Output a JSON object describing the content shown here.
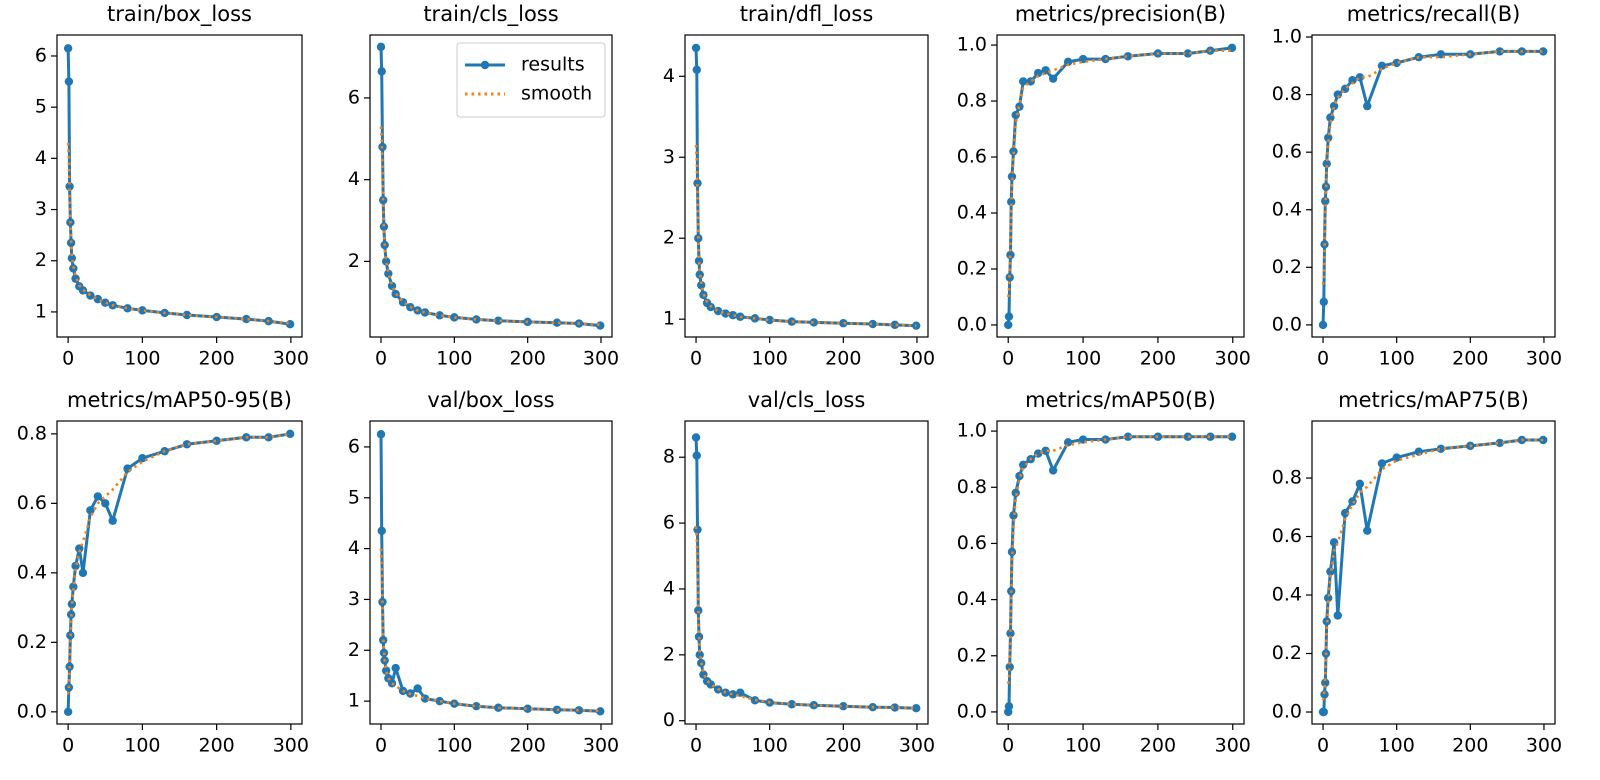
{
  "chart_data": [
    {
      "type": "line",
      "title": "train/box_loss",
      "x": [
        0,
        1,
        2,
        3,
        4,
        5,
        7,
        10,
        15,
        20,
        30,
        40,
        50,
        60,
        80,
        100,
        130,
        160,
        200,
        240,
        270,
        299
      ],
      "series": [
        {
          "color": "#1f77b4",
          "style": "solid",
          "marker": true,
          "values": [
            6.15,
            5.5,
            3.45,
            2.75,
            2.35,
            2.05,
            1.85,
            1.65,
            1.5,
            1.42,
            1.32,
            1.25,
            1.18,
            1.13,
            1.07,
            1.03,
            0.98,
            0.94,
            0.9,
            0.86,
            0.82,
            0.76
          ]
        },
        {
          "color": "#ff7f0e",
          "style": "dotted",
          "marker": false,
          "values": [
            4.3,
            4.0,
            3.3,
            2.8,
            2.4,
            2.1,
            1.9,
            1.7,
            1.52,
            1.43,
            1.33,
            1.25,
            1.18,
            1.13,
            1.07,
            1.03,
            0.98,
            0.94,
            0.9,
            0.86,
            0.82,
            0.78
          ]
        }
      ],
      "xlim": [
        -15,
        315
      ],
      "xticks": [
        0,
        100,
        200,
        300
      ],
      "ylim": [
        0.51,
        6.41
      ],
      "yticks": [
        1,
        2,
        3,
        4,
        5,
        6
      ]
    },
    {
      "type": "line",
      "title": "train/cls_loss",
      "x": [
        0,
        1,
        2,
        3,
        4,
        5,
        7,
        10,
        15,
        20,
        30,
        40,
        50,
        60,
        80,
        100,
        130,
        160,
        200,
        240,
        270,
        299
      ],
      "series": [
        {
          "name": "results",
          "color": "#1f77b4",
          "style": "solid",
          "marker": true,
          "values": [
            7.25,
            6.65,
            4.8,
            3.5,
            2.85,
            2.4,
            2.0,
            1.7,
            1.4,
            1.2,
            1.0,
            0.88,
            0.8,
            0.75,
            0.68,
            0.63,
            0.58,
            0.55,
            0.52,
            0.5,
            0.48,
            0.43
          ]
        },
        {
          "name": "smooth",
          "color": "#ff7f0e",
          "style": "dotted",
          "marker": false,
          "values": [
            5.3,
            5.0,
            4.2,
            3.4,
            2.8,
            2.4,
            2.0,
            1.72,
            1.42,
            1.22,
            1.01,
            0.89,
            0.8,
            0.75,
            0.68,
            0.63,
            0.58,
            0.55,
            0.52,
            0.5,
            0.48,
            0.45
          ]
        }
      ],
      "xlim": [
        -15,
        315
      ],
      "xticks": [
        0,
        100,
        200,
        300
      ],
      "ylim": [
        0.15,
        7.54
      ],
      "yticks": [
        2,
        4,
        6
      ],
      "legend": "upper right"
    },
    {
      "type": "line",
      "title": "train/dfl_loss",
      "x": [
        0,
        1,
        2,
        3,
        4,
        5,
        7,
        10,
        15,
        20,
        30,
        40,
        50,
        60,
        80,
        100,
        130,
        160,
        200,
        240,
        270,
        299
      ],
      "series": [
        {
          "color": "#1f77b4",
          "style": "solid",
          "marker": true,
          "values": [
            4.35,
            4.08,
            2.68,
            2.0,
            1.72,
            1.55,
            1.42,
            1.3,
            1.2,
            1.15,
            1.1,
            1.07,
            1.05,
            1.03,
            1.01,
            0.99,
            0.97,
            0.96,
            0.95,
            0.94,
            0.93,
            0.92
          ]
        },
        {
          "color": "#ff7f0e",
          "style": "dotted",
          "marker": false,
          "values": [
            3.15,
            2.95,
            2.5,
            2.05,
            1.78,
            1.6,
            1.45,
            1.32,
            1.21,
            1.16,
            1.1,
            1.07,
            1.05,
            1.03,
            1.01,
            0.99,
            0.97,
            0.96,
            0.95,
            0.94,
            0.93,
            0.92
          ]
        }
      ],
      "xlim": [
        -15,
        315
      ],
      "xticks": [
        0,
        100,
        200,
        300
      ],
      "ylim": [
        0.78,
        4.51
      ],
      "yticks": [
        1,
        2,
        3,
        4
      ]
    },
    {
      "type": "line",
      "title": "metrics/precision(B)",
      "x": [
        0,
        1,
        2,
        3,
        4,
        5,
        7,
        10,
        15,
        20,
        30,
        40,
        50,
        60,
        80,
        100,
        130,
        160,
        200,
        240,
        270,
        299
      ],
      "series": [
        {
          "color": "#1f77b4",
          "style": "solid",
          "marker": true,
          "values": [
            0.0,
            0.03,
            0.17,
            0.25,
            0.44,
            0.53,
            0.62,
            0.75,
            0.78,
            0.87,
            0.87,
            0.9,
            0.91,
            0.88,
            0.94,
            0.95,
            0.95,
            0.96,
            0.97,
            0.97,
            0.98,
            0.99
          ]
        },
        {
          "color": "#ff7f0e",
          "style": "dotted",
          "marker": false,
          "values": [
            0.1,
            0.12,
            0.2,
            0.28,
            0.4,
            0.5,
            0.6,
            0.72,
            0.79,
            0.85,
            0.87,
            0.89,
            0.9,
            0.91,
            0.93,
            0.94,
            0.95,
            0.96,
            0.97,
            0.97,
            0.98,
            0.98
          ]
        }
      ],
      "xlim": [
        -15,
        315
      ],
      "xticks": [
        0,
        100,
        200,
        300
      ],
      "ylim": [
        -0.043,
        1.036
      ],
      "yticks": [
        {
          "value": 0,
          "label": "0.0"
        },
        0.2,
        0.4,
        0.6,
        0.8,
        {
          "value": 1,
          "label": "1.0"
        }
      ]
    },
    {
      "type": "line",
      "title": "metrics/recall(B)",
      "x": [
        0,
        1,
        2,
        3,
        4,
        5,
        7,
        10,
        15,
        20,
        30,
        40,
        50,
        60,
        80,
        100,
        130,
        160,
        200,
        240,
        270,
        299
      ],
      "series": [
        {
          "color": "#1f77b4",
          "style": "solid",
          "marker": true,
          "values": [
            0.0,
            0.08,
            0.28,
            0.43,
            0.48,
            0.56,
            0.65,
            0.72,
            0.76,
            0.8,
            0.82,
            0.85,
            0.86,
            0.76,
            0.9,
            0.91,
            0.93,
            0.94,
            0.94,
            0.95,
            0.95,
            0.95
          ]
        },
        {
          "color": "#ff7f0e",
          "style": "dotted",
          "marker": false,
          "values": [
            0.14,
            0.16,
            0.26,
            0.38,
            0.46,
            0.54,
            0.63,
            0.7,
            0.76,
            0.79,
            0.82,
            0.84,
            0.86,
            0.86,
            0.89,
            0.91,
            0.93,
            0.93,
            0.94,
            0.95,
            0.95,
            0.95
          ]
        }
      ],
      "xlim": [
        -15,
        315
      ],
      "xticks": [
        0,
        100,
        200,
        300
      ],
      "ylim": [
        -0.042,
        1.007
      ],
      "yticks": [
        {
          "value": 0,
          "label": "0.0"
        },
        0.2,
        0.4,
        0.6,
        0.8,
        {
          "value": 1,
          "label": "1.0"
        }
      ]
    },
    {
      "type": "line",
      "title": "metrics/mAP50-95(B)",
      "x": [
        0,
        1,
        2,
        3,
        4,
        5,
        7,
        10,
        15,
        20,
        30,
        40,
        50,
        60,
        80,
        100,
        130,
        160,
        200,
        240,
        270,
        299
      ],
      "series": [
        {
          "color": "#1f77b4",
          "style": "solid",
          "marker": true,
          "values": [
            0.0,
            0.07,
            0.13,
            0.22,
            0.28,
            0.31,
            0.36,
            0.42,
            0.47,
            0.4,
            0.58,
            0.62,
            0.6,
            0.55,
            0.7,
            0.73,
            0.75,
            0.77,
            0.78,
            0.79,
            0.79,
            0.8
          ]
        },
        {
          "color": "#ff7f0e",
          "style": "dotted",
          "marker": false,
          "values": [
            0.05,
            0.07,
            0.12,
            0.19,
            0.25,
            0.3,
            0.35,
            0.41,
            0.46,
            0.49,
            0.56,
            0.6,
            0.62,
            0.64,
            0.69,
            0.72,
            0.75,
            0.77,
            0.78,
            0.79,
            0.79,
            0.8
          ]
        }
      ],
      "xlim": [
        -15,
        315
      ],
      "xticks": [
        0,
        100,
        200,
        300
      ],
      "ylim": [
        -0.035,
        0.837
      ],
      "yticks": [
        {
          "value": 0,
          "label": "0.0"
        },
        0.2,
        0.4,
        0.6,
        0.8
      ]
    },
    {
      "type": "line",
      "title": "val/box_loss",
      "x": [
        0,
        1,
        2,
        3,
        4,
        5,
        7,
        10,
        15,
        20,
        30,
        40,
        50,
        60,
        80,
        100,
        130,
        160,
        200,
        240,
        270,
        299
      ],
      "series": [
        {
          "color": "#1f77b4",
          "style": "solid",
          "marker": true,
          "values": [
            6.25,
            4.35,
            2.95,
            2.2,
            1.95,
            1.8,
            1.6,
            1.45,
            1.35,
            1.65,
            1.2,
            1.15,
            1.25,
            1.05,
            1.0,
            0.95,
            0.9,
            0.87,
            0.85,
            0.83,
            0.82,
            0.8
          ]
        },
        {
          "color": "#ff7f0e",
          "style": "dotted",
          "marker": false,
          "values": [
            4.0,
            3.6,
            2.9,
            2.3,
            2.0,
            1.8,
            1.6,
            1.45,
            1.35,
            1.3,
            1.2,
            1.14,
            1.1,
            1.05,
            1.0,
            0.95,
            0.9,
            0.87,
            0.85,
            0.83,
            0.82,
            0.81
          ]
        }
      ],
      "xlim": [
        -15,
        315
      ],
      "xticks": [
        0,
        100,
        200,
        300
      ],
      "ylim": [
        0.55,
        6.51
      ],
      "yticks": [
        1,
        2,
        3,
        4,
        5,
        6
      ]
    },
    {
      "type": "line",
      "title": "val/cls_loss",
      "x": [
        0,
        1,
        2,
        3,
        4,
        5,
        7,
        10,
        15,
        20,
        30,
        40,
        50,
        60,
        80,
        100,
        130,
        160,
        200,
        240,
        270,
        299
      ],
      "series": [
        {
          "color": "#1f77b4",
          "style": "solid",
          "marker": true,
          "values": [
            8.6,
            8.05,
            5.8,
            3.35,
            2.55,
            2.0,
            1.75,
            1.4,
            1.2,
            1.1,
            0.95,
            0.85,
            0.8,
            0.85,
            0.62,
            0.55,
            0.5,
            0.47,
            0.44,
            0.41,
            0.4,
            0.38
          ]
        },
        {
          "color": "#ff7f0e",
          "style": "dotted",
          "marker": false,
          "values": [
            5.9,
            5.5,
            4.6,
            3.5,
            2.7,
            2.1,
            1.8,
            1.45,
            1.22,
            1.1,
            0.96,
            0.86,
            0.8,
            0.75,
            0.63,
            0.56,
            0.5,
            0.47,
            0.44,
            0.41,
            0.4,
            0.38
          ]
        }
      ],
      "xlim": [
        -15,
        315
      ],
      "xticks": [
        0,
        100,
        200,
        300
      ],
      "ylim": [
        -0.1,
        9.1
      ],
      "yticks": [
        0,
        2,
        4,
        6,
        8
      ]
    },
    {
      "type": "line",
      "title": "metrics/mAP50(B)",
      "x": [
        0,
        1,
        2,
        3,
        4,
        5,
        7,
        10,
        15,
        20,
        30,
        40,
        50,
        60,
        80,
        100,
        130,
        160,
        200,
        240,
        270,
        299
      ],
      "series": [
        {
          "color": "#1f77b4",
          "style": "solid",
          "marker": true,
          "values": [
            0.0,
            0.02,
            0.16,
            0.28,
            0.43,
            0.57,
            0.7,
            0.78,
            0.84,
            0.88,
            0.9,
            0.92,
            0.93,
            0.86,
            0.96,
            0.97,
            0.97,
            0.98,
            0.98,
            0.98,
            0.98,
            0.98
          ]
        },
        {
          "color": "#ff7f0e",
          "style": "dotted",
          "marker": false,
          "values": [
            0.1,
            0.12,
            0.19,
            0.28,
            0.4,
            0.52,
            0.66,
            0.76,
            0.83,
            0.87,
            0.9,
            0.92,
            0.93,
            0.93,
            0.95,
            0.96,
            0.97,
            0.98,
            0.98,
            0.98,
            0.98,
            0.98
          ]
        }
      ],
      "xlim": [
        -15,
        315
      ],
      "xticks": [
        0,
        100,
        200,
        300
      ],
      "ylim": [
        -0.043,
        1.036
      ],
      "yticks": [
        {
          "value": 0,
          "label": "0.0"
        },
        0.2,
        0.4,
        0.6,
        0.8,
        {
          "value": 1,
          "label": "1.0"
        }
      ]
    },
    {
      "type": "line",
      "title": "metrics/mAP75(B)",
      "x": [
        0,
        1,
        2,
        3,
        4,
        5,
        7,
        10,
        15,
        20,
        30,
        40,
        50,
        60,
        80,
        100,
        130,
        160,
        200,
        240,
        270,
        299
      ],
      "series": [
        {
          "color": "#1f77b4",
          "style": "solid",
          "marker": true,
          "values": [
            0.0,
            0.0,
            0.06,
            0.1,
            0.2,
            0.31,
            0.39,
            0.48,
            0.58,
            0.33,
            0.68,
            0.72,
            0.78,
            0.62,
            0.85,
            0.87,
            0.89,
            0.9,
            0.91,
            0.92,
            0.93,
            0.93
          ]
        },
        {
          "color": "#ff7f0e",
          "style": "dotted",
          "marker": false,
          "values": [
            0.04,
            0.05,
            0.08,
            0.12,
            0.19,
            0.28,
            0.37,
            0.46,
            0.55,
            0.58,
            0.66,
            0.71,
            0.75,
            0.77,
            0.83,
            0.86,
            0.88,
            0.9,
            0.91,
            0.92,
            0.93,
            0.93
          ]
        }
      ],
      "xlim": [
        -15,
        315
      ],
      "xticks": [
        0,
        100,
        200,
        300
      ],
      "ylim": [
        -0.041,
        0.995
      ],
      "yticks": [
        {
          "value": 0,
          "label": "0.0"
        },
        0.2,
        0.4,
        0.6,
        0.8
      ]
    }
  ]
}
